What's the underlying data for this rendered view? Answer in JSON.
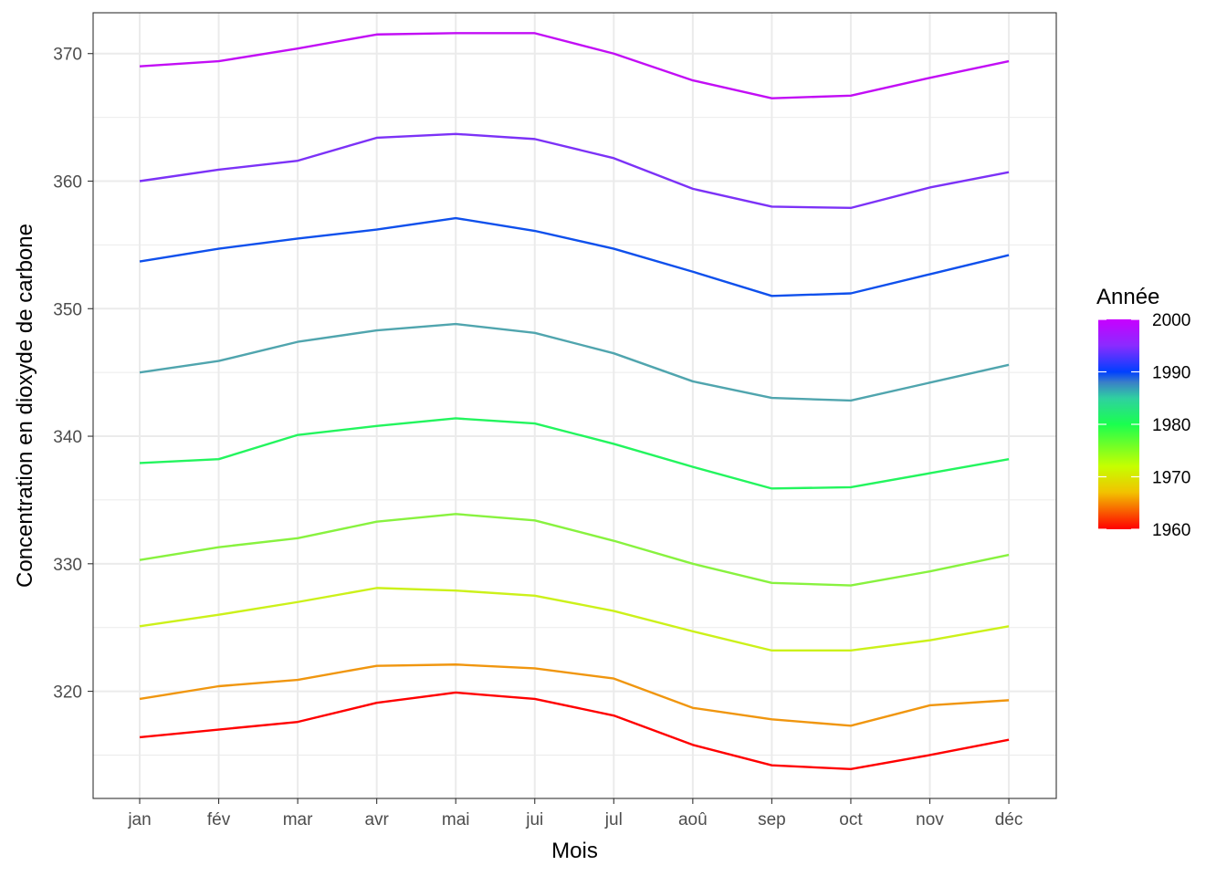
{
  "chart_data": {
    "type": "line",
    "xlabel": "Mois",
    "ylabel": "Concentration en dioxyde de carbone",
    "categories": [
      "jan",
      "fév",
      "mar",
      "avr",
      "mai",
      "jui",
      "jul",
      "aoû",
      "sep",
      "oct",
      "nov",
      "déc"
    ],
    "ylim": [
      311.6,
      373.2
    ],
    "yticks": [
      320,
      330,
      340,
      350,
      360,
      370
    ],
    "yticks_minor": [
      315,
      325,
      335,
      345,
      355,
      365
    ],
    "grid": true,
    "legend": {
      "title": "Année",
      "placement": "right",
      "type": "colorbar",
      "range": [
        1960,
        2000
      ],
      "ticks": [
        1960,
        1970,
        1980,
        1990,
        2000
      ],
      "gradient": [
        {
          "value": 1960,
          "color": "#ff0000"
        },
        {
          "value": 1967,
          "color": "#f2c200"
        },
        {
          "value": 1972,
          "color": "#c6ff00"
        },
        {
          "value": 1980,
          "color": "#1aff4f"
        },
        {
          "value": 1985,
          "color": "#2fd0a0"
        },
        {
          "value": 1988,
          "color": "#3a7fc8"
        },
        {
          "value": 1990,
          "color": "#0040ff"
        },
        {
          "value": 1995,
          "color": "#8a2bff"
        },
        {
          "value": 2000,
          "color": "#c800ff"
        }
      ]
    },
    "series": [
      {
        "year": 1960,
        "color": "#ff0000",
        "values": [
          316.4,
          317.0,
          317.6,
          319.1,
          319.9,
          319.4,
          318.1,
          315.8,
          314.2,
          313.9,
          315.0,
          316.2
        ]
      },
      {
        "year": 1965,
        "color": "#f0960f",
        "values": [
          319.4,
          320.4,
          320.9,
          322.0,
          322.1,
          321.8,
          321.0,
          318.7,
          317.8,
          317.3,
          318.9,
          319.3
        ]
      },
      {
        "year": 1970,
        "color": "#ccf11a",
        "values": [
          325.1,
          326.0,
          327.0,
          328.1,
          327.9,
          327.5,
          326.3,
          324.7,
          323.2,
          323.2,
          324.0,
          325.1
        ]
      },
      {
        "year": 1975,
        "color": "#88f23f",
        "values": [
          330.3,
          331.3,
          332.0,
          333.3,
          333.9,
          333.4,
          331.8,
          330.0,
          328.5,
          328.3,
          329.4,
          330.7
        ]
      },
      {
        "year": 1980,
        "color": "#23f55e",
        "values": [
          337.9,
          338.2,
          340.1,
          340.8,
          341.4,
          341.0,
          339.4,
          337.6,
          335.9,
          336.0,
          337.1,
          338.2
        ]
      },
      {
        "year": 1985,
        "color": "#50a5ae",
        "values": [
          345.0,
          345.9,
          347.4,
          348.3,
          348.8,
          348.1,
          346.5,
          344.3,
          343.0,
          342.8,
          344.2,
          345.6
        ]
      },
      {
        "year": 1990,
        "color": "#0f50ec",
        "values": [
          353.7,
          354.7,
          355.5,
          356.2,
          357.1,
          356.1,
          354.7,
          352.9,
          351.0,
          351.2,
          352.7,
          354.2
        ]
      },
      {
        "year": 1995,
        "color": "#7c32f7",
        "values": [
          360.0,
          360.9,
          361.6,
          363.4,
          363.7,
          363.3,
          361.8,
          359.4,
          358.0,
          357.9,
          359.5,
          360.7
        ]
      },
      {
        "year": 2000,
        "color": "#c20ef5",
        "values": [
          369.0,
          369.4,
          370.4,
          371.5,
          371.6,
          371.6,
          370.0,
          367.9,
          366.5,
          366.7,
          368.1,
          369.4
        ]
      }
    ]
  }
}
